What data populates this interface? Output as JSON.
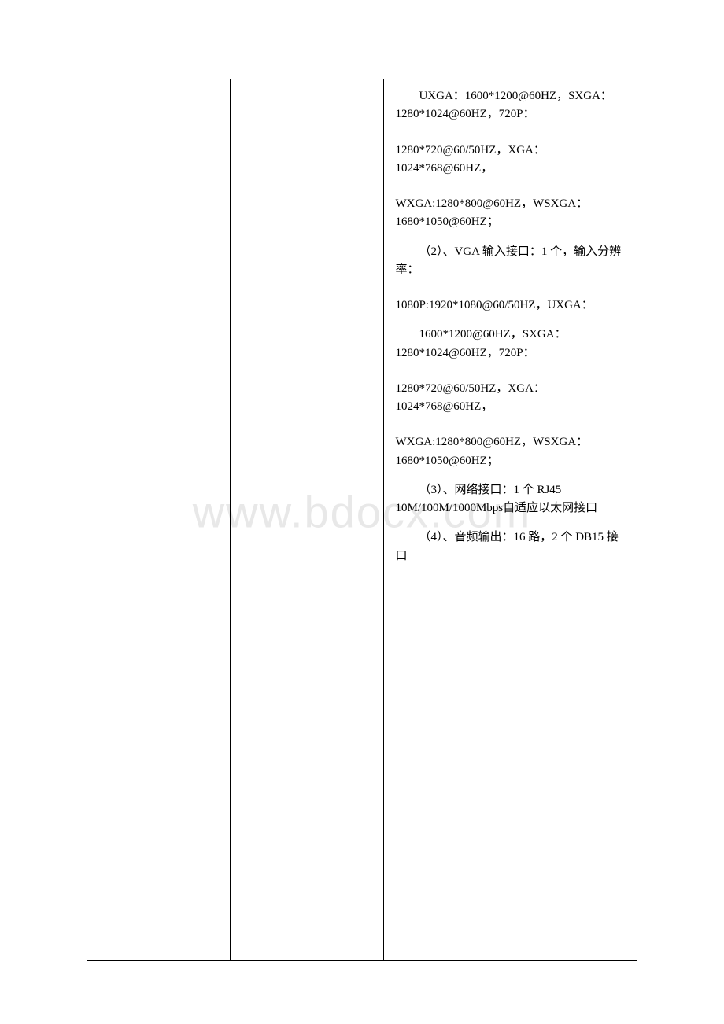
{
  "watermark": "www.bdocx.com",
  "table": {
    "border_color": "#000000",
    "background_color": "#ffffff",
    "text_color": "#000000",
    "font_size": 15,
    "columns": [
      {
        "width_pct": 26
      },
      {
        "width_pct": 28
      },
      {
        "width_pct": 46
      }
    ],
    "col3": {
      "blocks": [
        {
          "type": "para",
          "indent": true,
          "text": "UXGA：1600*1200@60HZ，SXGA：1280*1024@60HZ，720P："
        },
        {
          "type": "spacer"
        },
        {
          "type": "para",
          "indent": false,
          "text": "1280*720@60/50HZ，XGA：1024*768@60HZ，"
        },
        {
          "type": "spacer"
        },
        {
          "type": "para",
          "indent": false,
          "text": "WXGA:1280*800@60HZ，WSXGA：1680*1050@60HZ；"
        },
        {
          "type": "spacer-sm"
        },
        {
          "type": "para",
          "indent": true,
          "text": "（2）、VGA 输入接口：1 个，输入分辨率："
        },
        {
          "type": "spacer"
        },
        {
          "type": "para",
          "indent": false,
          "text": "1080P:1920*1080@60/50HZ，UXGA："
        },
        {
          "type": "spacer-sm"
        },
        {
          "type": "para",
          "indent": true,
          "text": "1600*1200@60HZ，SXGA：1280*1024@60HZ，720P："
        },
        {
          "type": "spacer"
        },
        {
          "type": "para",
          "indent": false,
          "text": "1280*720@60/50HZ，XGA：1024*768@60HZ，"
        },
        {
          "type": "spacer"
        },
        {
          "type": "para",
          "indent": false,
          "text": "WXGA:1280*800@60HZ，WSXGA：1680*1050@60HZ；"
        },
        {
          "type": "spacer-sm"
        },
        {
          "type": "para",
          "indent": true,
          "text": "（3）、网络接口：1 个 RJ45 10M/100M/1000Mbps自适应以太网接口"
        },
        {
          "type": "spacer-sm"
        },
        {
          "type": "para",
          "indent": true,
          "text": "（4）、音频输出：16 路，2 个 DB15 接口"
        }
      ]
    }
  }
}
